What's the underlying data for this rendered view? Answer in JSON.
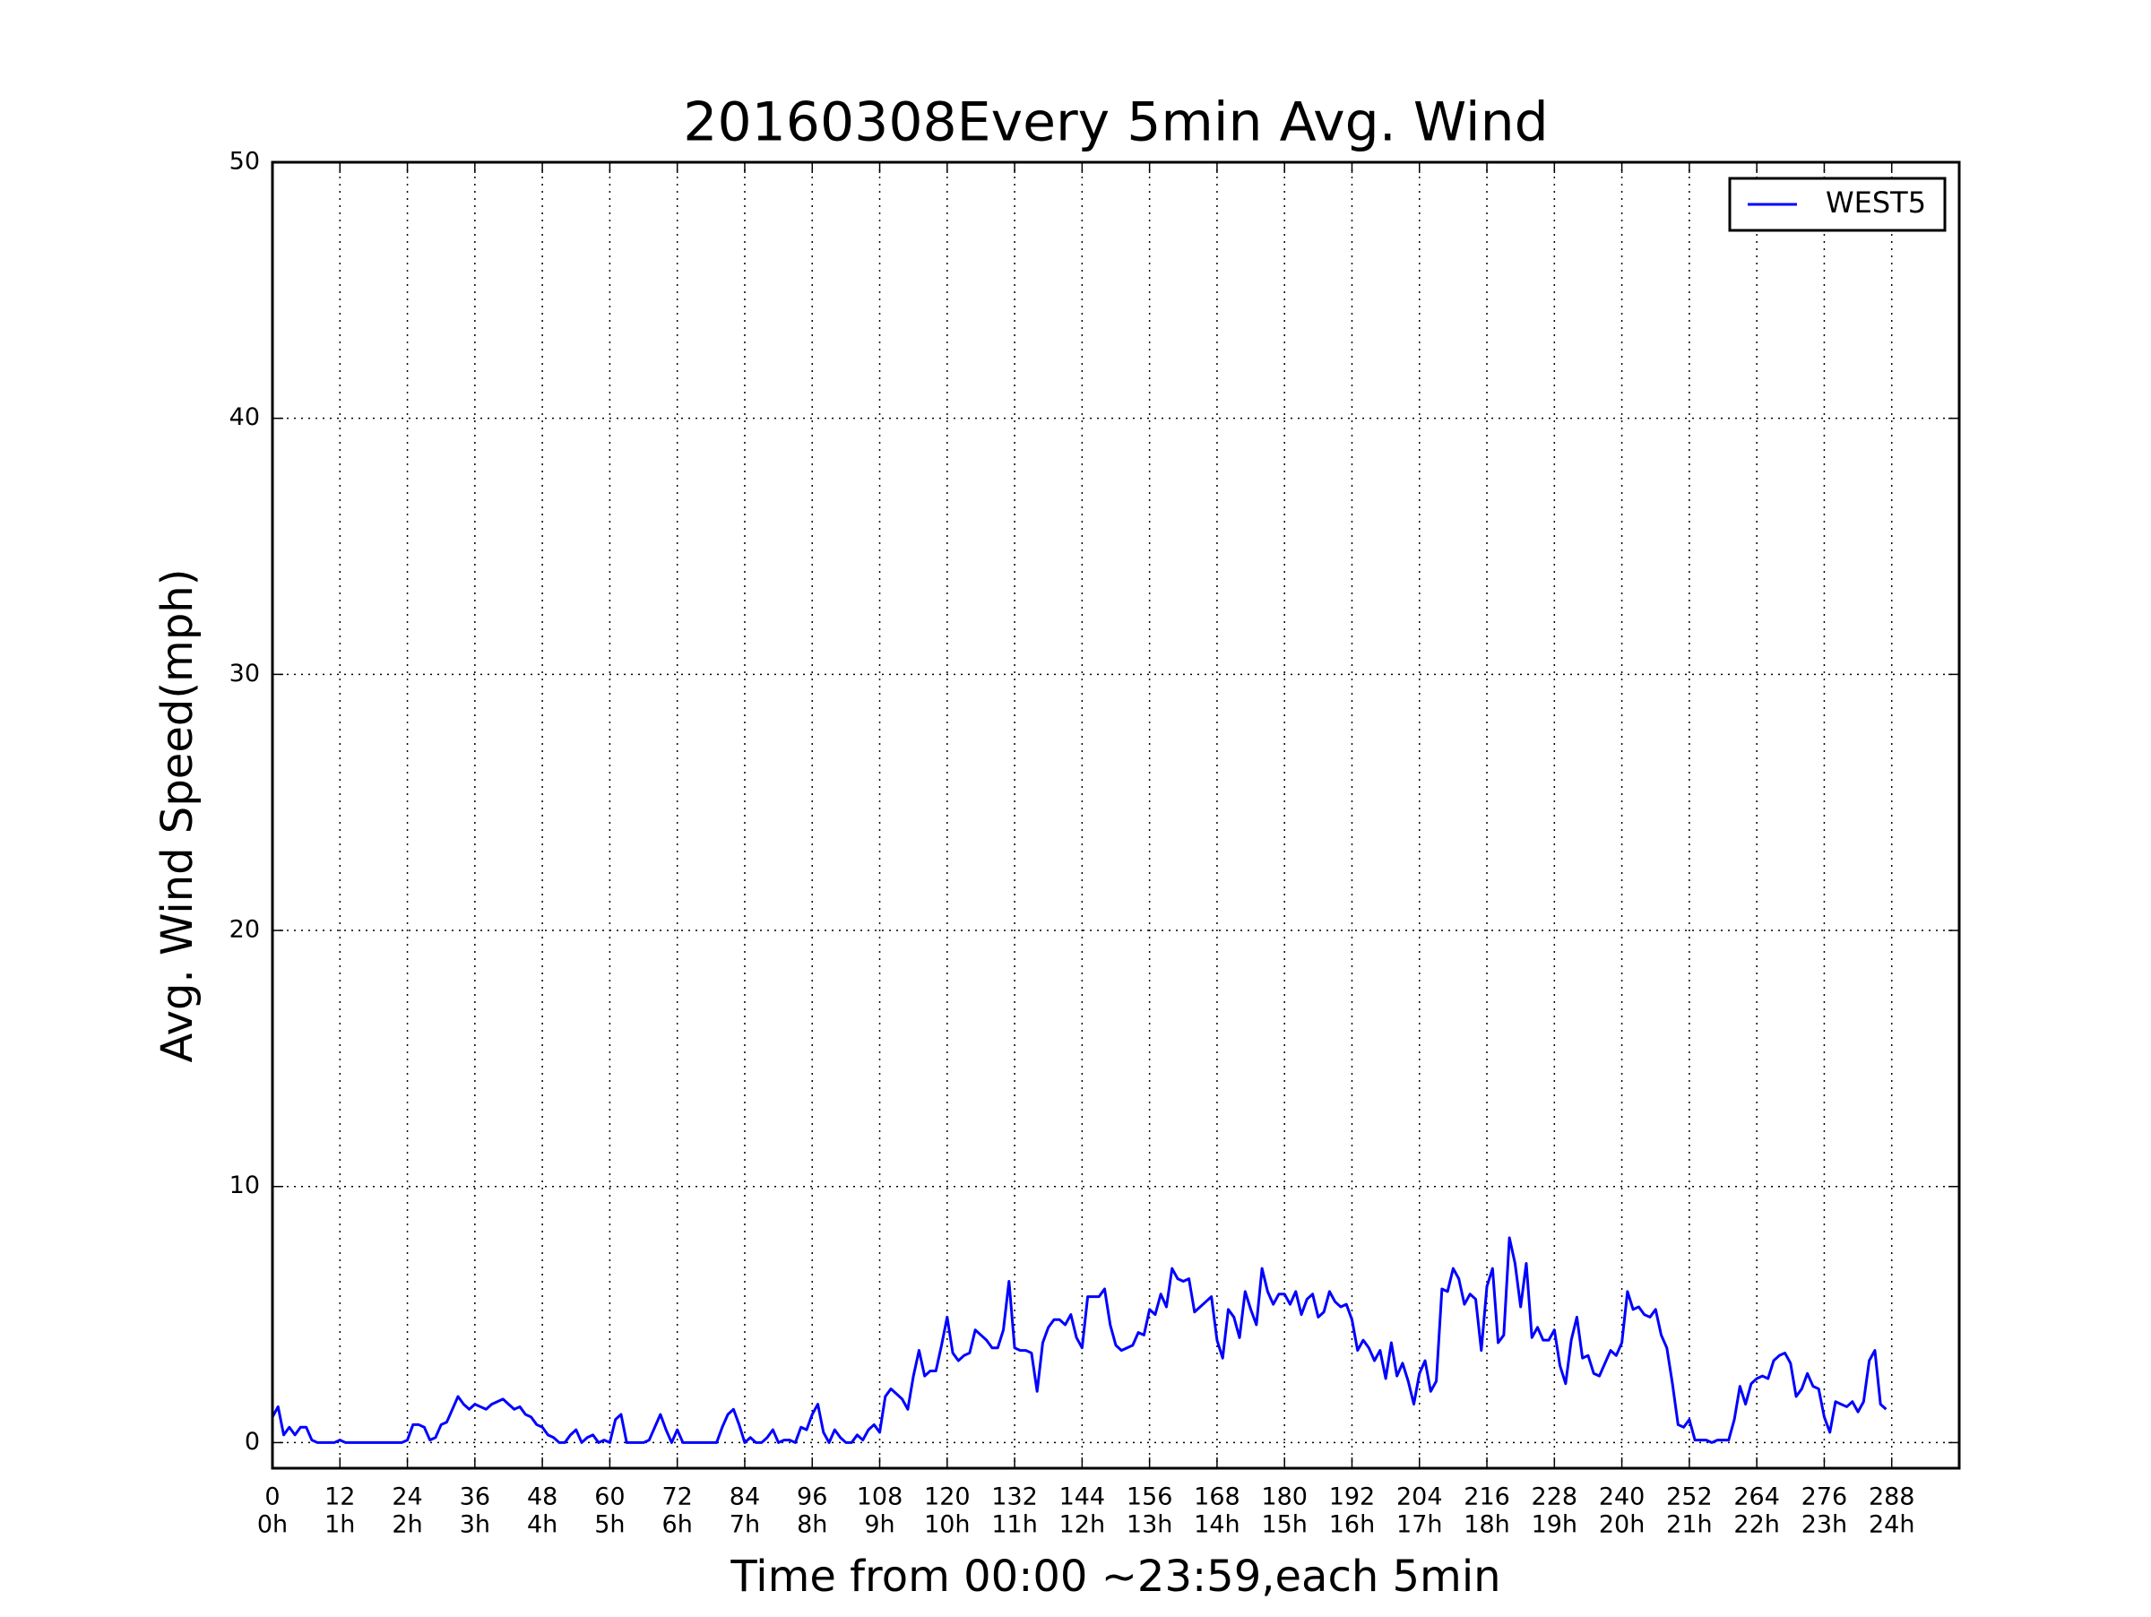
{
  "chart_data": {
    "type": "line",
    "title": "20160308Every 5min Avg. Wind",
    "x_label": "Time from 00:00 ~23:59,each 5min",
    "y_label": "Avg. Wind Speed(mph)",
    "xlim": [
      0,
      300
    ],
    "ylim": [
      -1,
      50
    ],
    "xticks": [
      0,
      12,
      24,
      36,
      48,
      60,
      72,
      84,
      96,
      108,
      120,
      132,
      144,
      156,
      168,
      180,
      192,
      204,
      216,
      228,
      240,
      252,
      264,
      276,
      288
    ],
    "xtick_sublabels": [
      "0h",
      "1h",
      "2h",
      "3h",
      "4h",
      "5h",
      "6h",
      "7h",
      "8h",
      "9h",
      "10h",
      "11h",
      "12h",
      "13h",
      "14h",
      "15h",
      "16h",
      "17h",
      "18h",
      "19h",
      "20h",
      "21h",
      "22h",
      "23h",
      "24h"
    ],
    "yticks": [
      0,
      10,
      20,
      30,
      40,
      50
    ],
    "grid": true,
    "legend": "upper right",
    "series": [
      {
        "name": "WEST5",
        "color": "#0000ff",
        "values": [
          1.0,
          1.4,
          0.3,
          0.6,
          0.3,
          0.6,
          0.6,
          0.1,
          0,
          0,
          0,
          0,
          0.1,
          0,
          0,
          0,
          0,
          0,
          0,
          0,
          0,
          0,
          0,
          0,
          0.1,
          0.7,
          0.7,
          0.6,
          0.1,
          0.2,
          0.7,
          0.8,
          1.3,
          1.8,
          1.5,
          1.3,
          1.5,
          1.4,
          1.3,
          1.5,
          1.6,
          1.7,
          1.5,
          1.3,
          1.4,
          1.1,
          1.0,
          0.7,
          0.6,
          0.3,
          0.2,
          0,
          0,
          0.3,
          0.5,
          0,
          0.2,
          0.3,
          0,
          0.1,
          0,
          0.9,
          1.1,
          0,
          0,
          0,
          0,
          0.1,
          0.6,
          1.1,
          0.5,
          0,
          0.5,
          0,
          0,
          0,
          0,
          0,
          0,
          0,
          0.6,
          1.1,
          1.3,
          0.7,
          0,
          0.2,
          0,
          0,
          0.2,
          0.5,
          0,
          0.1,
          0.1,
          0,
          0.6,
          0.5,
          1.1,
          1.5,
          0.4,
          0,
          0.5,
          0.2,
          0,
          0,
          0.3,
          0.1,
          0.5,
          0.7,
          0.4,
          1.8,
          2.1,
          1.9,
          1.7,
          1.3,
          2.6,
          3.6,
          2.6,
          2.8,
          2.8,
          3.8,
          4.9,
          3.5,
          3.2,
          3.4,
          3.5,
          4.4,
          4.2,
          4.0,
          3.7,
          3.7,
          4.4,
          6.3,
          3.7,
          3.6,
          3.6,
          3.5,
          2.0,
          3.9,
          4.5,
          4.8,
          4.8,
          4.6,
          5.0,
          4.1,
          3.7,
          5.7,
          5.7,
          5.7,
          6.0,
          4.6,
          3.8,
          3.6,
          3.7,
          3.8,
          4.3,
          4.2,
          5.2,
          5.0,
          5.8,
          5.3,
          6.8,
          6.4,
          6.3,
          6.4,
          5.1,
          5.3,
          5.5,
          5.7,
          4.0,
          3.3,
          5.2,
          4.9,
          4.1,
          5.9,
          5.2,
          4.6,
          6.8,
          5.9,
          5.4,
          5.8,
          5.8,
          5.4,
          5.9,
          5.0,
          5.6,
          5.8,
          4.9,
          5.1,
          5.9,
          5.5,
          5.3,
          5.4,
          4.8,
          3.6,
          4.0,
          3.7,
          3.2,
          3.6,
          2.5,
          3.9,
          2.6,
          3.1,
          2.4,
          1.5,
          2.7,
          3.2,
          2.0,
          2.4,
          6.0,
          5.9,
          6.8,
          6.4,
          5.4,
          5.8,
          5.6,
          3.6,
          6.1,
          6.8,
          3.9,
          4.2,
          8.0,
          7.0,
          5.3,
          7.0,
          4.1,
          4.5,
          4.0,
          4.0,
          4.4,
          3.0,
          2.3,
          4.0,
          4.9,
          3.3,
          3.4,
          2.7,
          2.6,
          3.1,
          3.6,
          3.4,
          3.9,
          5.9,
          5.2,
          5.3,
          5.0,
          4.9,
          5.2,
          4.2,
          3.7,
          2.3,
          0.7,
          0.6,
          0.9,
          0.1,
          0.1,
          0.1,
          0,
          0.1,
          0.1,
          0.1,
          0.9,
          2.2,
          1.5,
          2.3,
          2.5,
          2.6,
          2.5,
          3.2,
          3.4,
          3.5,
          3.1,
          1.8,
          2.1,
          2.7,
          2.2,
          2.1,
          1.0,
          0.4,
          1.6,
          1.5,
          1.4,
          1.6,
          1.2,
          1.6,
          3.2,
          3.6,
          1.5,
          1.3
        ]
      }
    ]
  }
}
